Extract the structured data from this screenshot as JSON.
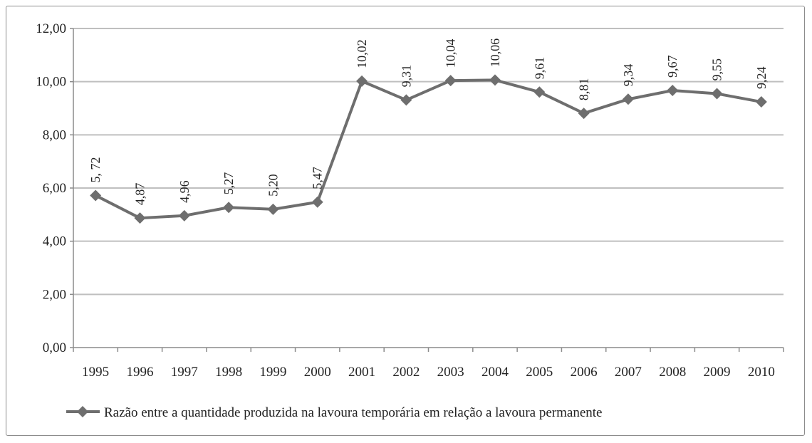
{
  "chart_data": {
    "type": "line",
    "title": "",
    "xlabel": "",
    "ylabel": "",
    "categories": [
      "1995",
      "1996",
      "1997",
      "1998",
      "1999",
      "2000",
      "2001",
      "2002",
      "2003",
      "2004",
      "2005",
      "2006",
      "2007",
      "2008",
      "2009",
      "2010"
    ],
    "series": [
      {
        "name": "Razão entre a quantidade produzida na lavoura temporária em relação a lavoura permanente",
        "values": [
          5.72,
          4.87,
          4.96,
          5.27,
          5.2,
          5.47,
          10.02,
          9.31,
          10.04,
          10.06,
          9.61,
          8.81,
          9.34,
          9.67,
          9.55,
          9.24
        ],
        "data_labels": [
          "5, 72",
          "4,87",
          "4,96",
          "5,27",
          "5,20",
          "5,47",
          "10,02",
          "9,31",
          "10,04",
          "10,06",
          "9,61",
          "8,81",
          "9,34",
          "9,67",
          "9,55",
          "9,24"
        ],
        "color": "#6e6e6e",
        "marker": "diamond"
      }
    ],
    "ylim": [
      0,
      12
    ],
    "yticks": [
      "0,00",
      "2,00",
      "4,00",
      "6,00",
      "8,00",
      "10,00",
      "12,00"
    ],
    "grid": true,
    "legend_position": "bottom"
  },
  "colors": {
    "line": "#6e6e6e",
    "grid": "#bfbfbf",
    "axis": "#8c8c8c"
  }
}
